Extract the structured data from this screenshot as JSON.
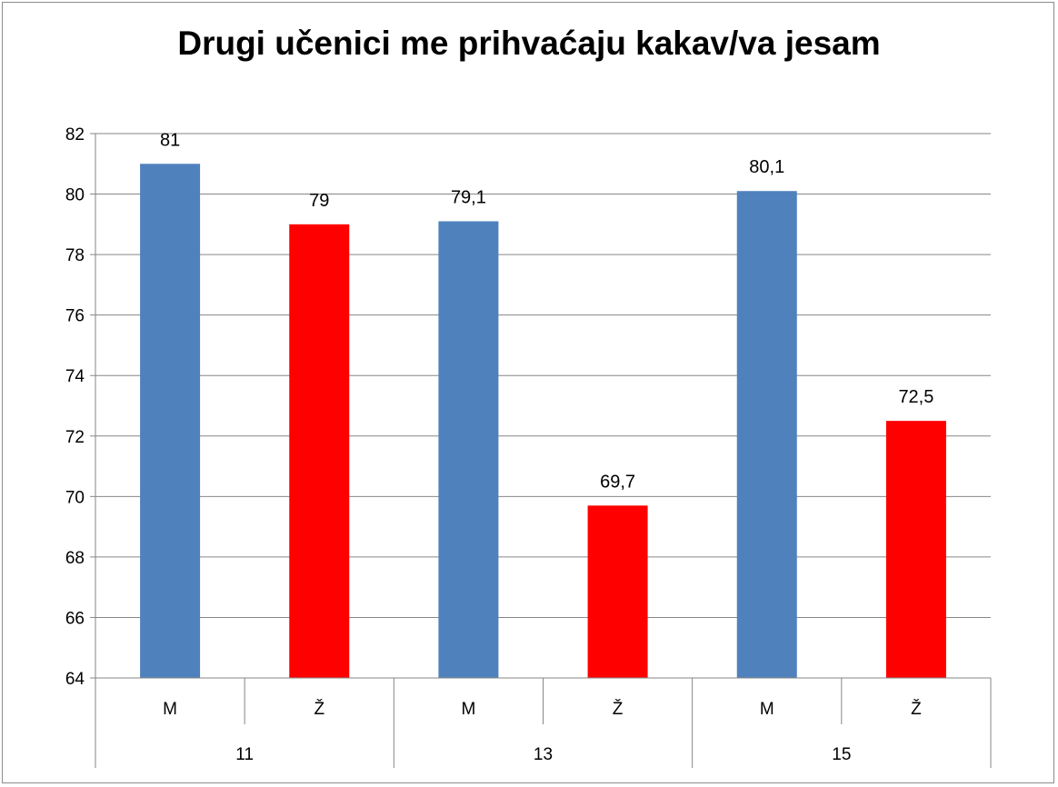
{
  "chart_data": {
    "type": "bar",
    "title": "Drugi učenici me prihvaćaju kakav/va jesam",
    "xlabel": "",
    "ylabel": "",
    "ylim": [
      64,
      82
    ],
    "yticks": [
      64,
      66,
      68,
      70,
      72,
      74,
      76,
      78,
      80,
      82
    ],
    "grid": true,
    "legend": "none",
    "groups": [
      {
        "label": "11",
        "bars": [
          {
            "category": "M",
            "value": 81,
            "label": "81",
            "color": "#4f81bd"
          },
          {
            "category": "Ž",
            "value": 79,
            "label": "79",
            "color": "#ff0000"
          }
        ]
      },
      {
        "label": "13",
        "bars": [
          {
            "category": "M",
            "value": 79.1,
            "label": "79,1",
            "color": "#4f81bd"
          },
          {
            "category": "Ž",
            "value": 69.7,
            "label": "69,7",
            "color": "#ff0000"
          }
        ]
      },
      {
        "label": "15",
        "bars": [
          {
            "category": "M",
            "value": 80.1,
            "label": "80,1",
            "color": "#4f81bd"
          },
          {
            "category": "Ž",
            "value": 72.5,
            "label": "72,5",
            "color": "#ff0000"
          }
        ]
      }
    ]
  }
}
